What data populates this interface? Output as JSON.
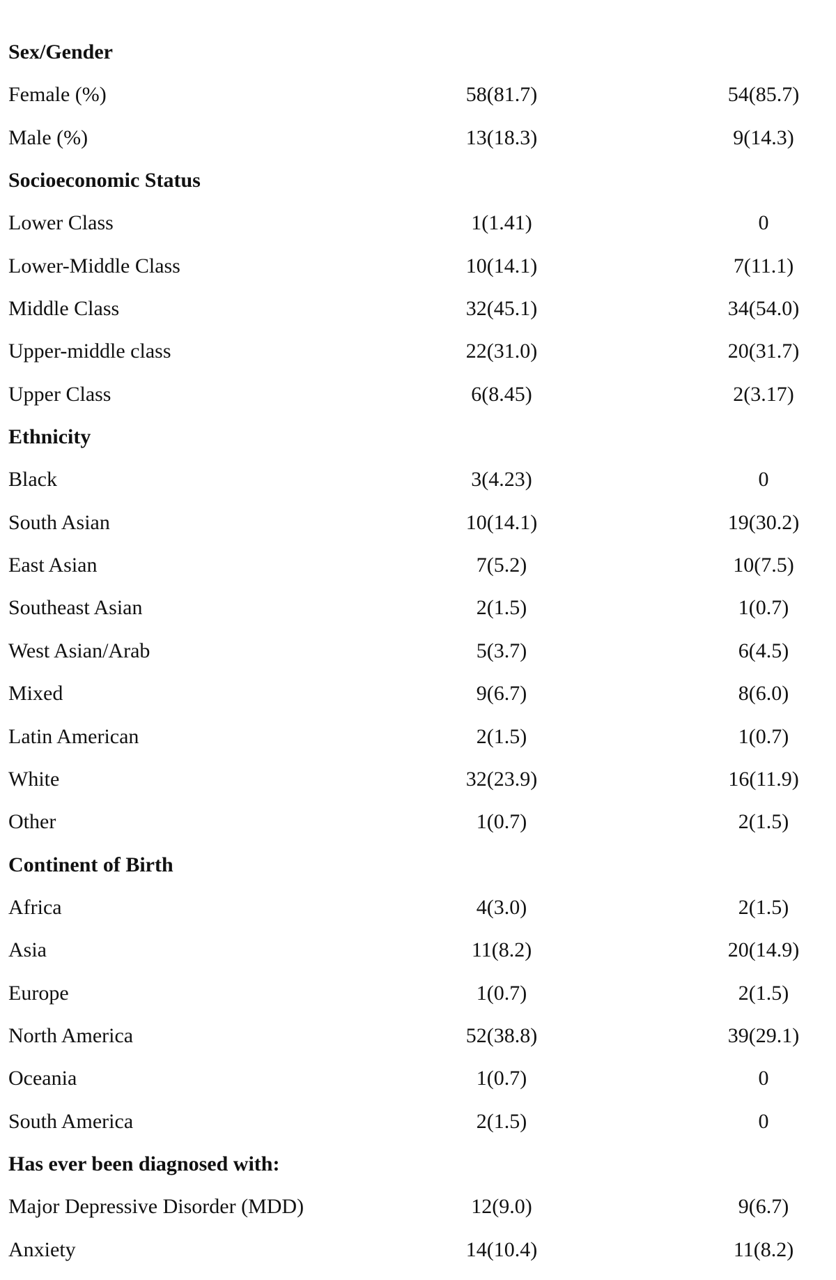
{
  "rows": [
    {
      "type": "section",
      "label": "Sex/Gender"
    },
    {
      "type": "item",
      "label": "Female (%)",
      "a": "58(81.7)",
      "b": "54(85.7)"
    },
    {
      "type": "item",
      "label": "Male (%)",
      "a": "13(18.3)",
      "b": "9(14.3)"
    },
    {
      "type": "section",
      "label": "Socioeconomic Status"
    },
    {
      "type": "item",
      "label": "Lower Class",
      "a": "1(1.41)",
      "b": "0"
    },
    {
      "type": "item",
      "label": "Lower-Middle Class",
      "a": "10(14.1)",
      "b": "7(11.1)"
    },
    {
      "type": "item",
      "label": "Middle Class",
      "a": "32(45.1)",
      "b": "34(54.0)"
    },
    {
      "type": "item",
      "label": "Upper-middle class",
      "a": "22(31.0)",
      "b": "20(31.7)"
    },
    {
      "type": "item",
      "label": "Upper Class",
      "a": "6(8.45)",
      "b": "2(3.17)"
    },
    {
      "type": "section",
      "label": "Ethnicity"
    },
    {
      "type": "item",
      "label": "Black",
      "a": "3(4.23)",
      "b": "0"
    },
    {
      "type": "item",
      "label": "South Asian",
      "a": "10(14.1)",
      "b": "19(30.2)"
    },
    {
      "type": "item",
      "label": "East Asian",
      "a": "7(5.2)",
      "b": "10(7.5)"
    },
    {
      "type": "item",
      "label": "Southeast Asian",
      "a": "2(1.5)",
      "b": "1(0.7)"
    },
    {
      "type": "item",
      "label": "West Asian/Arab",
      "a": "5(3.7)",
      "b": "6(4.5)"
    },
    {
      "type": "item",
      "label": "Mixed",
      "a": "9(6.7)",
      "b": "8(6.0)"
    },
    {
      "type": "item",
      "label": "Latin American",
      "a": "2(1.5)",
      "b": "1(0.7)"
    },
    {
      "type": "item",
      "label": "White",
      "a": "32(23.9)",
      "b": "16(11.9)"
    },
    {
      "type": "item",
      "label": "Other",
      "a": "1(0.7)",
      "b": "2(1.5)"
    },
    {
      "type": "section",
      "label": "Continent of Birth"
    },
    {
      "type": "item",
      "label": "Africa",
      "a": "4(3.0)",
      "b": "2(1.5)"
    },
    {
      "type": "item",
      "label": "Asia",
      "a": "11(8.2)",
      "b": "20(14.9)"
    },
    {
      "type": "item",
      "label": "Europe",
      "a": "1(0.7)",
      "b": "2(1.5)"
    },
    {
      "type": "item",
      "label": "North America",
      "a": "52(38.8)",
      "b": "39(29.1)"
    },
    {
      "type": "item",
      "label": "Oceania",
      "a": "1(0.7)",
      "b": "0"
    },
    {
      "type": "item",
      "label": "South America",
      "a": "2(1.5)",
      "b": "0"
    },
    {
      "type": "section",
      "label": "Has ever been diagnosed with:"
    },
    {
      "type": "item",
      "label": "Major Depressive Disorder (MDD)",
      "a": "12(9.0)",
      "b": "9(6.7)"
    },
    {
      "type": "item",
      "label": "Anxiety",
      "a": "14(10.4)",
      "b": "11(8.2)"
    }
  ]
}
